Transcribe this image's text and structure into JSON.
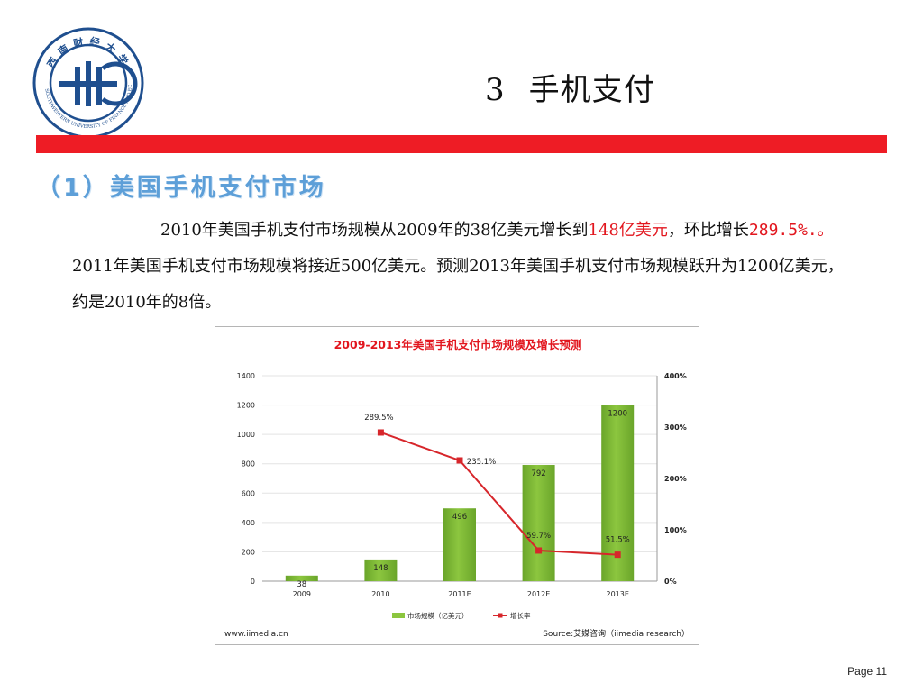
{
  "header": {
    "logo_text": "西南财经大学",
    "logo_text_en": "SOUTHWESTERN UNIVERSITY OF FINANCE AND ECONOMICS",
    "title_number": "3",
    "title": "手机支付"
  },
  "section": {
    "heading": "（1）美国手机支付市场"
  },
  "body": {
    "p1": "2010年美国手机支付市场规模从2009年的38亿美元增长到",
    "p1_hl": "148亿美元",
    "p2": "，环比增长",
    "p2_hl": "289.5%.。",
    "p3": "2011年美国手机支付市场规模将接近500亿美元。预测2013年美国手机支付市场规模跃升为1200亿美元，约是2010年的8倍。"
  },
  "chart_data": {
    "type": "bar",
    "title": "2009-2013年美国手机支付市场规模及增长预测",
    "categories": [
      "2009",
      "2010",
      "2011E",
      "2012E",
      "2013E"
    ],
    "series": [
      {
        "name": "市场规模（亿美元）",
        "type": "bar",
        "axis": "left",
        "values": [
          38,
          148,
          496,
          792,
          1200
        ],
        "labels": [
          "38",
          "148",
          "496",
          "792",
          "1200"
        ]
      },
      {
        "name": "增长率",
        "type": "line",
        "axis": "right",
        "values": [
          null,
          289.5,
          235.1,
          59.7,
          51.5
        ],
        "labels": [
          "",
          "289.5%",
          "235.1%",
          "59.7%",
          "51.5%"
        ]
      }
    ],
    "y_left": {
      "min": 0,
      "max": 1400,
      "ticks": [
        "0",
        "200",
        "400",
        "600",
        "800",
        "1000",
        "1200",
        "1400"
      ]
    },
    "y_right": {
      "min": 0,
      "max": 400,
      "ticks": [
        "0%",
        "100%",
        "200%",
        "300%",
        "400%"
      ]
    },
    "legend_position": "bottom",
    "colors": {
      "bar": "#8cc63f",
      "bar_dark": "#6aa52a",
      "line": "#d7262b",
      "title": "#e2161e"
    },
    "footer_left": "www.iimedia.cn",
    "footer_right": "Source:艾媒咨询（iimedia research）"
  },
  "page": {
    "label": "Page 11"
  }
}
